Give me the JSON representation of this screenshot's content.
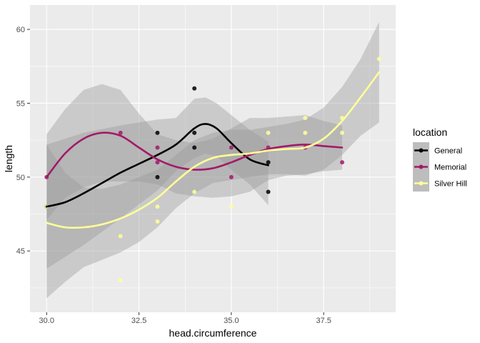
{
  "chart_data": {
    "type": "scatter",
    "xlabel": "head.circumference",
    "ylabel": "length",
    "xlim": [
      29.55,
      39.45
    ],
    "ylim": [
      40.85,
      61.65
    ],
    "x_ticks": [
      "30.0",
      "32.5",
      "35.0",
      "37.5"
    ],
    "y_ticks": [
      "45",
      "50",
      "55",
      "60"
    ],
    "grid": true,
    "legend_title": "location",
    "legend_position": "right",
    "series": [
      {
        "name": "General",
        "color": "#000000",
        "points": [
          [
            30,
            48
          ],
          [
            33,
            53
          ],
          [
            33,
            50
          ],
          [
            34,
            56
          ],
          [
            34,
            53
          ],
          [
            34,
            52
          ],
          [
            36,
            51
          ],
          [
            36,
            49
          ]
        ],
        "smooth": [
          [
            30,
            48
          ],
          [
            30.5,
            48.3
          ],
          [
            31,
            48.9
          ],
          [
            31.5,
            49.6
          ],
          [
            32,
            50.3
          ],
          [
            32.5,
            50.9
          ],
          [
            33,
            51.5
          ],
          [
            33.5,
            52.2
          ],
          [
            34,
            53.3
          ],
          [
            34.3,
            53.6
          ],
          [
            34.6,
            53.3
          ],
          [
            35,
            52.3
          ],
          [
            35.5,
            51.2
          ],
          [
            36,
            50.8
          ]
        ],
        "band_upper": [
          [
            30,
            52.2
          ],
          [
            31,
            53.0
          ],
          [
            32,
            53.5
          ],
          [
            33,
            53.9
          ],
          [
            33.5,
            54.0
          ],
          [
            34,
            55.3
          ],
          [
            34.3,
            55.4
          ],
          [
            34.6,
            55.0
          ],
          [
            35,
            54.2
          ],
          [
            35.5,
            53.2
          ],
          [
            36,
            52.4
          ]
        ],
        "band_lower": [
          [
            30,
            43.8
          ],
          [
            31,
            45.4
          ],
          [
            32,
            47.2
          ],
          [
            33,
            49.1
          ],
          [
            33.5,
            50.4
          ],
          [
            34,
            51.3
          ],
          [
            34.3,
            51.6
          ],
          [
            34.6,
            51.4
          ],
          [
            35,
            50.5
          ],
          [
            35.5,
            49.5
          ],
          [
            36,
            48.1
          ]
        ]
      },
      {
        "name": "Memorial",
        "color": "#a21a68",
        "points": [
          [
            30,
            50
          ],
          [
            32,
            53
          ],
          [
            33,
            52
          ],
          [
            33,
            51
          ],
          [
            35,
            52
          ],
          [
            35,
            50
          ],
          [
            36,
            52
          ],
          [
            37,
            52
          ],
          [
            38,
            51
          ]
        ],
        "smooth": [
          [
            30,
            50
          ],
          [
            30.5,
            51.6
          ],
          [
            31,
            52.6
          ],
          [
            31.5,
            53.0
          ],
          [
            32,
            52.8
          ],
          [
            32.5,
            52.0
          ],
          [
            33,
            51.2
          ],
          [
            33.5,
            50.7
          ],
          [
            34,
            50.5
          ],
          [
            34.5,
            50.6
          ],
          [
            35,
            51.0
          ],
          [
            35.5,
            51.5
          ],
          [
            36,
            51.9
          ],
          [
            36.5,
            52.1
          ],
          [
            37,
            52.2
          ],
          [
            37.5,
            52.1
          ],
          [
            38,
            52.0
          ]
        ],
        "band_upper": [
          [
            30,
            52.9
          ],
          [
            30.5,
            54.6
          ],
          [
            31,
            55.9
          ],
          [
            31.5,
            56.3
          ],
          [
            32,
            55.9
          ],
          [
            32.5,
            54.3
          ],
          [
            33,
            52.9
          ],
          [
            33.5,
            52.5
          ],
          [
            34,
            52.3
          ],
          [
            34.5,
            52.6
          ],
          [
            35,
            53.3
          ],
          [
            35.5,
            54.0
          ],
          [
            36,
            54.0
          ],
          [
            36.5,
            54.1
          ],
          [
            37,
            54.2
          ],
          [
            37.5,
            53.8
          ],
          [
            38,
            53.5
          ]
        ],
        "band_lower": [
          [
            30,
            47.1
          ],
          [
            30.5,
            48.6
          ],
          [
            31,
            49.3
          ],
          [
            31.5,
            49.7
          ],
          [
            32,
            49.7
          ],
          [
            32.5,
            49.7
          ],
          [
            33,
            49.5
          ],
          [
            33.5,
            48.9
          ],
          [
            34,
            48.7
          ],
          [
            34.5,
            48.6
          ],
          [
            35,
            48.7
          ],
          [
            35.5,
            49.0
          ],
          [
            36,
            49.8
          ],
          [
            36.5,
            50.1
          ],
          [
            37,
            50.2
          ],
          [
            37.5,
            50.4
          ],
          [
            38,
            50.5
          ]
        ]
      },
      {
        "name": "Silver Hill",
        "color": "#ffff99",
        "points": [
          [
            30,
            48
          ],
          [
            32,
            46
          ],
          [
            32,
            43
          ],
          [
            33,
            48
          ],
          [
            33,
            47
          ],
          [
            34,
            49
          ],
          [
            35,
            48
          ],
          [
            36,
            53
          ],
          [
            37,
            54
          ],
          [
            37,
            53
          ],
          [
            38,
            53
          ],
          [
            38,
            54
          ],
          [
            39,
            58
          ]
        ],
        "smooth": [
          [
            30,
            46.9
          ],
          [
            30.5,
            46.6
          ],
          [
            31,
            46.6
          ],
          [
            31.5,
            46.8
          ],
          [
            32,
            47.2
          ],
          [
            32.5,
            47.8
          ],
          [
            33,
            48.6
          ],
          [
            33.5,
            49.7
          ],
          [
            34,
            50.7
          ],
          [
            34.5,
            51.3
          ],
          [
            35,
            51.5
          ],
          [
            35.5,
            51.6
          ],
          [
            36,
            51.8
          ],
          [
            36.5,
            51.9
          ],
          [
            37,
            52.0
          ],
          [
            37.5,
            52.6
          ],
          [
            38,
            53.8
          ],
          [
            38.5,
            55.4
          ],
          [
            39,
            57.1
          ]
        ],
        "band_upper": [
          [
            30,
            52.2
          ],
          [
            30.5,
            50.3
          ],
          [
            31,
            49.3
          ],
          [
            31.5,
            49.2
          ],
          [
            32,
            49.5
          ],
          [
            32.5,
            50.0
          ],
          [
            33,
            50.5
          ],
          [
            33.5,
            51.5
          ],
          [
            34,
            52.5
          ],
          [
            34.5,
            53.0
          ],
          [
            35,
            53.2
          ],
          [
            35.5,
            53.2
          ],
          [
            36,
            53.4
          ],
          [
            36.5,
            53.6
          ],
          [
            37,
            53.9
          ],
          [
            37.5,
            54.7
          ],
          [
            38,
            56.1
          ],
          [
            38.5,
            58.0
          ],
          [
            39,
            60.5
          ]
        ],
        "band_lower": [
          [
            30,
            41.8
          ],
          [
            30.5,
            42.9
          ],
          [
            31,
            43.9
          ],
          [
            31.5,
            44.4
          ],
          [
            32,
            44.9
          ],
          [
            32.5,
            45.6
          ],
          [
            33,
            46.6
          ],
          [
            33.5,
            47.9
          ],
          [
            34,
            48.9
          ],
          [
            34.5,
            49.6
          ],
          [
            35,
            49.8
          ],
          [
            35.5,
            50.0
          ],
          [
            36,
            50.2
          ],
          [
            36.5,
            50.2
          ],
          [
            37,
            50.1
          ],
          [
            37.5,
            50.5
          ],
          [
            38,
            51.5
          ],
          [
            38.5,
            52.8
          ],
          [
            39,
            53.7
          ]
        ]
      }
    ]
  }
}
